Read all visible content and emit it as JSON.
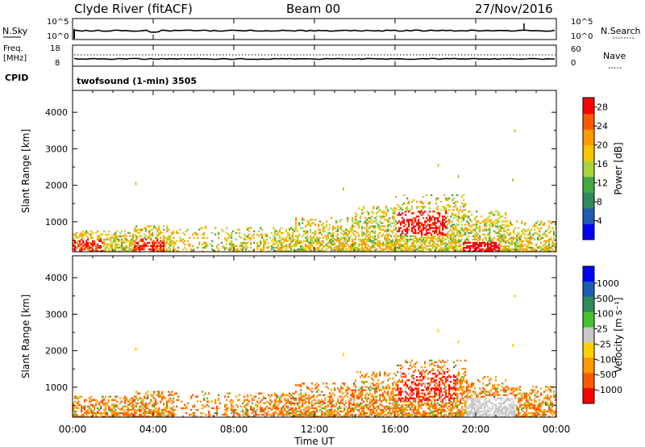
{
  "header": {
    "station": "Clyde River (fitACF)",
    "beam": "Beam 00",
    "date": "27/Nov/2016"
  },
  "noise_panel": {
    "left_label": "N.Sky",
    "left_ticks": [
      "10^5",
      "10^0"
    ],
    "right_label": "N.Search",
    "right_ticks": [
      "10^5",
      "10^0"
    ]
  },
  "freq_panel": {
    "left_label_1": "Freq.",
    "left_label_2": "[MHz]",
    "left_ticks": [
      "18",
      "8"
    ],
    "right_label": "Nave",
    "right_ticks": [
      "60",
      "0"
    ]
  },
  "cpid": {
    "label": "CPID",
    "value": "twofsound (1-min) 3505"
  },
  "colors": {
    "power_scale": [
      "#0000ff",
      "#1e5cb4",
      "#2f8a5a",
      "#45a845",
      "#a8d43c",
      "#f5c400",
      "#ff9a00",
      "#ff5a00",
      "#ff0000"
    ],
    "velocity_scale": [
      "#0000ff",
      "#1e5cb4",
      "#2f8a5a",
      "#45c030",
      "#c8c8c8",
      "#ffd200",
      "#ff9a00",
      "#ff5a00",
      "#ff0000"
    ]
  },
  "chart_data": [
    {
      "type": "heatmap",
      "panel": "power",
      "ylabel": "Slant Range [km]",
      "yticks": [
        1000,
        2000,
        3000,
        4000
      ],
      "ylim": [
        180,
        4600
      ],
      "xlim_hours": [
        0,
        24
      ],
      "colorbar": {
        "label": "Power [dB]",
        "ticks": [
          4,
          8,
          12,
          16,
          20,
          24,
          28
        ],
        "range": [
          0,
          30
        ]
      }
    },
    {
      "type": "heatmap",
      "panel": "velocity",
      "ylabel": "Slant Range [km]",
      "yticks": [
        1000,
        2000,
        3000,
        4000
      ],
      "ylim": [
        180,
        4600
      ],
      "xlim_hours": [
        0,
        24
      ],
      "colorbar": {
        "label": "Velocity [m s⁻¹]",
        "ticks": [
          "1000",
          "500",
          "100",
          "25",
          "-25",
          "-100",
          "-500",
          "-1000"
        ]
      }
    }
  ],
  "x_axis": {
    "ticks": [
      "00:00",
      "04:00",
      "08:00",
      "12:00",
      "16:00",
      "20:00",
      "00:00"
    ],
    "label": "Time UT"
  }
}
